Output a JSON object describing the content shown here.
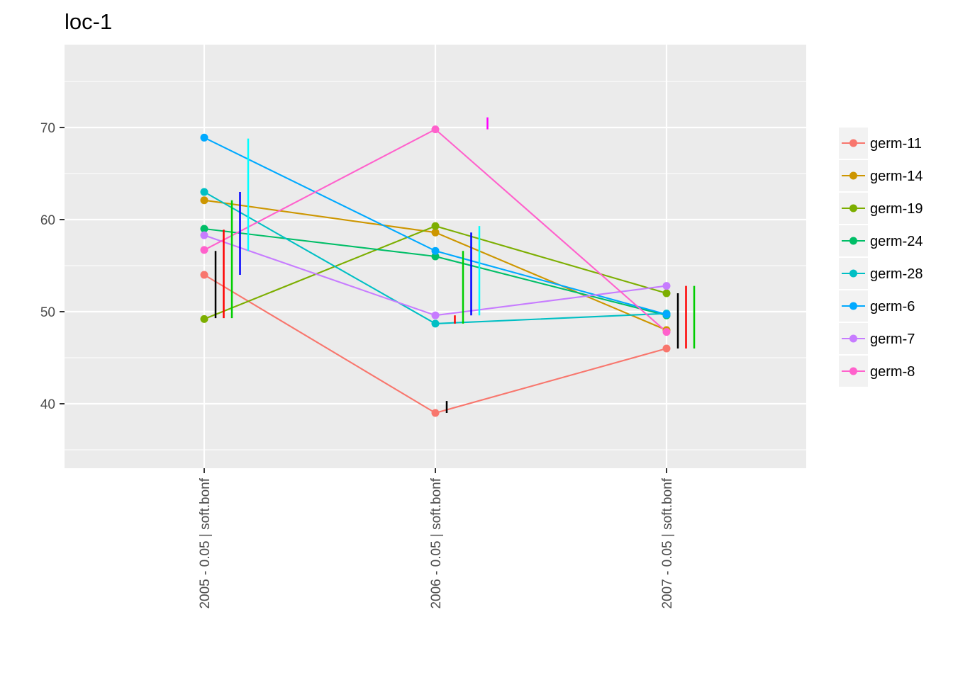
{
  "chart_data": {
    "type": "line",
    "title": "loc-1",
    "xlabel": "",
    "ylabel": "",
    "categories": [
      "2005 - 0.05 | soft.bonf",
      "2006 - 0.05 | soft.bonf",
      "2007 - 0.05 | soft.bonf"
    ],
    "ylim": [
      33,
      79
    ],
    "yticks": [
      40,
      50,
      60,
      70
    ],
    "grid": true,
    "legend_position": "right",
    "series": [
      {
        "name": "germ-11",
        "color": "#F8766D",
        "values": [
          54.0,
          39.0,
          46.0
        ]
      },
      {
        "name": "germ-14",
        "color": "#CD9600",
        "values": [
          62.1,
          58.6,
          48.0
        ]
      },
      {
        "name": "germ-19",
        "color": "#7CAE00",
        "values": [
          49.2,
          59.3,
          52.0
        ]
      },
      {
        "name": "germ-24",
        "color": "#00BE67",
        "values": [
          59.0,
          56.0,
          49.6
        ]
      },
      {
        "name": "germ-28",
        "color": "#00BFC4",
        "values": [
          63.0,
          48.7,
          49.8
        ]
      },
      {
        "name": "germ-6",
        "color": "#00A9FF",
        "values": [
          68.9,
          56.6,
          49.7
        ]
      },
      {
        "name": "germ-7",
        "color": "#C77CFF",
        "values": [
          58.3,
          49.6,
          52.8
        ]
      },
      {
        "name": "germ-8",
        "color": "#FF61CC",
        "values": [
          56.7,
          69.8,
          47.8
        ]
      }
    ],
    "error_bars": [
      [
        {
          "color": "#000000",
          "low": 49.3,
          "high": 56.6
        },
        {
          "color": "#FF0000",
          "low": 49.3,
          "high": 58.9
        },
        {
          "color": "#00CD00",
          "low": 49.3,
          "high": 62.1
        },
        {
          "color": "#0000FF",
          "low": 54.0,
          "high": 63.0
        },
        {
          "color": "#00FFFF",
          "low": 56.6,
          "high": 68.8
        }
      ],
      [
        {
          "color": "#000000",
          "low": 39.0,
          "high": 40.3
        },
        {
          "color": "#FF0000",
          "low": 48.7,
          "high": 49.6
        },
        {
          "color": "#00CD00",
          "low": 48.7,
          "high": 56.6
        },
        {
          "color": "#0000FF",
          "low": 49.6,
          "high": 58.6
        },
        {
          "color": "#00FFFF",
          "low": 49.6,
          "high": 59.3
        },
        {
          "color": "#FF00FF",
          "low": 69.8,
          "high": 71.1
        }
      ],
      [
        {
          "color": "#000000",
          "low": 46.0,
          "high": 52.0
        },
        {
          "color": "#FF0000",
          "low": 46.0,
          "high": 52.8
        },
        {
          "color": "#00CD00",
          "low": 46.0,
          "high": 52.8
        }
      ]
    ]
  }
}
